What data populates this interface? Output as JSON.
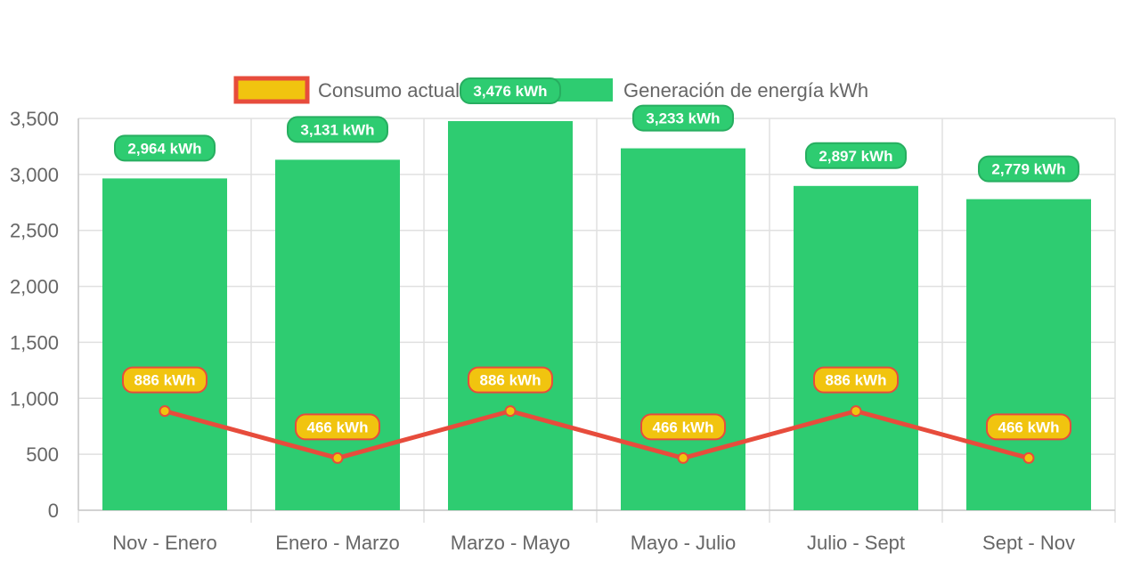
{
  "chart_data": {
    "type": "bar",
    "title": "",
    "xlabel": "",
    "ylabel": "",
    "categories": [
      "Nov - Enero",
      "Enero - Marzo",
      "Marzo - Mayo",
      "Mayo - Julio",
      "Julio - Sept",
      "Sept - Nov"
    ],
    "ylim": [
      0,
      3500
    ],
    "y_ticks": [
      "0",
      "500",
      "1,000",
      "1,500",
      "2,000",
      "2,500",
      "3,000",
      "3,500"
    ],
    "grid": true,
    "legend_position": "top",
    "series": [
      {
        "name": "Consumo actual kWh",
        "type": "line",
        "values": [
          886,
          466,
          886,
          466,
          886,
          466
        ],
        "labels": [
          "886 kWh",
          "466 kWh",
          "886 kWh",
          "466 kWh",
          "886 kWh",
          "466 kWh"
        ],
        "color": "#e74c3c",
        "fill_color": "#f1c40f"
      },
      {
        "name": "Generación de energía kWh",
        "type": "bar",
        "values": [
          2964,
          3131,
          3476,
          3233,
          2897,
          2779
        ],
        "labels": [
          "2,964 kWh",
          "3,131 kWh",
          "3,476 kWh",
          "3,233 kWh",
          "2,897 kWh",
          "2,779 kWh"
        ],
        "color": "#2ecc71"
      }
    ]
  }
}
